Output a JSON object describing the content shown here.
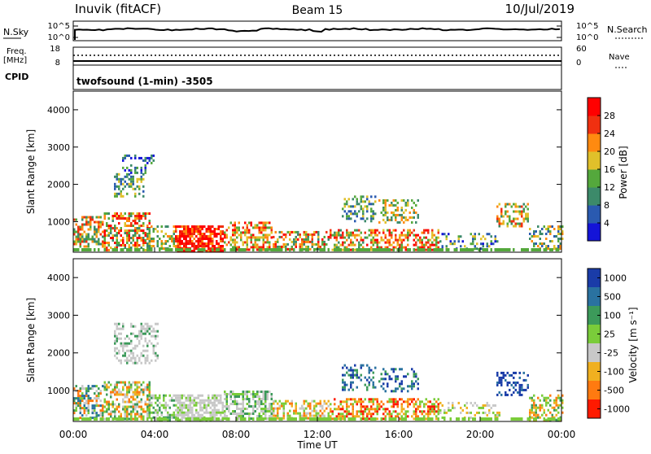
{
  "header": {
    "station": "Inuvik (fitACF)",
    "beam": "Beam 15",
    "date": "10/Jul/2019"
  },
  "noise_panel": {
    "left_label": "N.Sky",
    "right_label": "N.Search",
    "left_ticks": [
      "10^5",
      "10^0"
    ],
    "right_ticks": [
      "10^5",
      "10^0"
    ]
  },
  "freq_panel": {
    "left_label_line1": "Freq.",
    "left_label_line2": "[MHz]",
    "right_label": "Nave",
    "left_ticks": [
      "18",
      "8"
    ],
    "right_ticks": [
      "60",
      "0"
    ]
  },
  "cpid": {
    "label": "CPID",
    "text": "twofsound (1-min) -3505"
  },
  "chart_data": [
    {
      "type": "heatmap",
      "name": "power",
      "ylabel": "Slant Range [km]",
      "ylim": [
        180,
        4500
      ],
      "yticks": [
        "1000",
        "2000",
        "3000",
        "4000"
      ],
      "xlim_hours": [
        0,
        24
      ],
      "colorbar_label": "Power [dB]",
      "colorbar_ticks": [
        "4",
        "8",
        "12",
        "16",
        "20",
        "24",
        "28"
      ],
      "colors": [
        "#1414d8",
        "#2a5ab0",
        "#3c8a6a",
        "#54a83c",
        "#e0c02a",
        "#ff8a10",
        "#f03010",
        "#ff0000"
      ],
      "scatter_regions": [
        {
          "t": [
            0.0,
            1.5
          ],
          "r": [
            300,
            1150
          ],
          "dens": 0.55,
          "c": [
            2,
            3,
            4,
            5,
            6
          ]
        },
        {
          "t": [
            1.5,
            3.8
          ],
          "r": [
            250,
            1250
          ],
          "dens": 0.6,
          "c": [
            2,
            3,
            4,
            5,
            6,
            7
          ]
        },
        {
          "t": [
            2.0,
            3.5
          ],
          "r": [
            1700,
            2300
          ],
          "dens": 0.4,
          "c": [
            1,
            2,
            3,
            4
          ]
        },
        {
          "t": [
            2.4,
            4.0
          ],
          "r": [
            2300,
            2800
          ],
          "dens": 0.3,
          "c": [
            0,
            1,
            2,
            3
          ]
        },
        {
          "t": [
            3.6,
            5.0
          ],
          "r": [
            250,
            900
          ],
          "dens": 0.45,
          "c": [
            2,
            3,
            4,
            5
          ]
        },
        {
          "t": [
            5.0,
            7.4
          ],
          "r": [
            200,
            900
          ],
          "dens": 0.75,
          "c": [
            5,
            6,
            7,
            7,
            7
          ]
        },
        {
          "t": [
            7.4,
            9.8
          ],
          "r": [
            250,
            1000
          ],
          "dens": 0.6,
          "c": [
            3,
            4,
            5,
            6,
            7
          ]
        },
        {
          "t": [
            9.8,
            12.6
          ],
          "r": [
            250,
            750
          ],
          "dens": 0.5,
          "c": [
            2,
            3,
            4,
            5,
            6,
            7
          ]
        },
        {
          "t": [
            12.6,
            14.5
          ],
          "r": [
            250,
            800
          ],
          "dens": 0.5,
          "c": [
            2,
            3,
            4,
            5,
            6,
            7
          ]
        },
        {
          "t": [
            13.2,
            14.8
          ],
          "r": [
            1000,
            1700
          ],
          "dens": 0.35,
          "c": [
            1,
            2,
            3,
            4
          ]
        },
        {
          "t": [
            14.5,
            18.0
          ],
          "r": [
            250,
            800
          ],
          "dens": 0.55,
          "c": [
            3,
            4,
            5,
            6,
            7
          ]
        },
        {
          "t": [
            15.0,
            17.0
          ],
          "r": [
            1000,
            1600
          ],
          "dens": 0.35,
          "c": [
            2,
            3,
            4,
            5
          ]
        },
        {
          "t": [
            18.0,
            21.0
          ],
          "r": [
            250,
            700
          ],
          "dens": 0.3,
          "c": [
            0,
            1,
            2,
            3,
            4
          ]
        },
        {
          "t": [
            20.8,
            22.4
          ],
          "r": [
            900,
            1500
          ],
          "dens": 0.45,
          "c": [
            2,
            3,
            4,
            5,
            6
          ]
        },
        {
          "t": [
            22.4,
            24.0
          ],
          "r": [
            250,
            900
          ],
          "dens": 0.4,
          "c": [
            1,
            2,
            3,
            4,
            5
          ]
        }
      ]
    },
    {
      "type": "heatmap",
      "name": "velocity",
      "ylabel": "Slant Range [km]",
      "ylim": [
        180,
        4500
      ],
      "yticks": [
        "1000",
        "2000",
        "3000",
        "4000"
      ],
      "xlim_hours": [
        0,
        24
      ],
      "colorbar_label": "Velocity [m s⁻¹]",
      "colorbar_ticks": [
        "1000",
        "500",
        "100",
        "25",
        "-25",
        "-100",
        "-500",
        "-1000"
      ],
      "colors": [
        "#1a3ca8",
        "#2a72a0",
        "#3c9a5a",
        "#7acc3a",
        "#c8c8c8",
        "#f0b020",
        "#ff7a10",
        "#ff1a00"
      ],
      "scatter_regions": [
        {
          "t": [
            0.0,
            1.5
          ],
          "r": [
            300,
            1150
          ],
          "dens": 0.55,
          "c": [
            1,
            2,
            3,
            4,
            6
          ]
        },
        {
          "t": [
            1.5,
            3.8
          ],
          "r": [
            250,
            1250
          ],
          "dens": 0.6,
          "c": [
            2,
            3,
            4,
            5,
            6
          ]
        },
        {
          "t": [
            2.0,
            4.2
          ],
          "r": [
            1700,
            2800
          ],
          "dens": 0.4,
          "c": [
            4,
            4,
            4,
            2
          ]
        },
        {
          "t": [
            3.6,
            5.0
          ],
          "r": [
            250,
            900
          ],
          "dens": 0.45,
          "c": [
            2,
            3,
            4
          ]
        },
        {
          "t": [
            5.0,
            7.4
          ],
          "r": [
            200,
            900
          ],
          "dens": 0.75,
          "c": [
            4,
            4,
            4,
            3
          ]
        },
        {
          "t": [
            7.4,
            9.8
          ],
          "r": [
            250,
            1000
          ],
          "dens": 0.6,
          "c": [
            2,
            3,
            4,
            4
          ]
        },
        {
          "t": [
            9.8,
            12.6
          ],
          "r": [
            250,
            750
          ],
          "dens": 0.5,
          "c": [
            3,
            4,
            5,
            6
          ]
        },
        {
          "t": [
            12.6,
            14.5
          ],
          "r": [
            250,
            800
          ],
          "dens": 0.5,
          "c": [
            3,
            5,
            6,
            7
          ]
        },
        {
          "t": [
            13.2,
            14.8
          ],
          "r": [
            1000,
            1700
          ],
          "dens": 0.35,
          "c": [
            0,
            1,
            2
          ]
        },
        {
          "t": [
            14.5,
            18.0
          ],
          "r": [
            250,
            800
          ],
          "dens": 0.55,
          "c": [
            3,
            5,
            6,
            7
          ]
        },
        {
          "t": [
            15.0,
            17.0
          ],
          "r": [
            1000,
            1600
          ],
          "dens": 0.35,
          "c": [
            0,
            1,
            2
          ]
        },
        {
          "t": [
            18.0,
            21.0
          ],
          "r": [
            250,
            700
          ],
          "dens": 0.3,
          "c": [
            3,
            4,
            5
          ]
        },
        {
          "t": [
            20.8,
            22.4
          ],
          "r": [
            900,
            1500
          ],
          "dens": 0.45,
          "c": [
            0,
            0,
            1
          ]
        },
        {
          "t": [
            22.4,
            24.0
          ],
          "r": [
            250,
            900
          ],
          "dens": 0.4,
          "c": [
            2,
            3,
            5,
            6
          ]
        }
      ]
    }
  ],
  "xaxis": {
    "label": "Time UT",
    "ticks": [
      "00:00",
      "04:00",
      "08:00",
      "12:00",
      "16:00",
      "20:00",
      "00:00"
    ]
  }
}
